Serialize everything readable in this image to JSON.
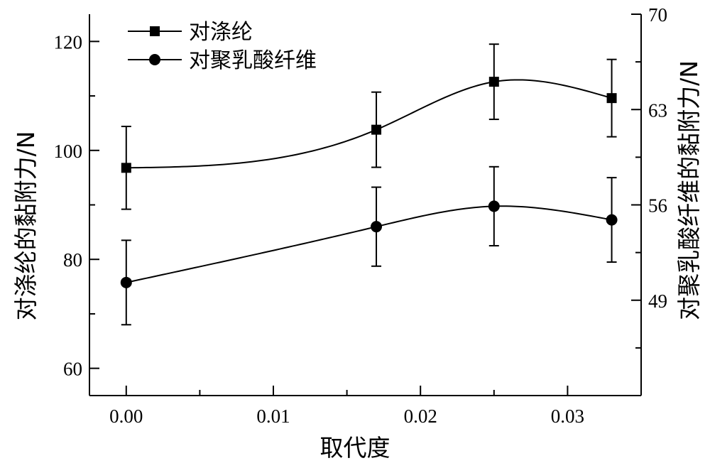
{
  "chart_data": {
    "type": "line",
    "xlabel": "取代度",
    "ylabel_left": "对涤纶的黏附力/N",
    "ylabel_right": "对聚乳酸纤维的黏附力/N",
    "xlim": [
      -0.0025,
      0.035
    ],
    "ylim_left": [
      55,
      125
    ],
    "ylim_right": [
      42,
      70
    ],
    "x_ticks": [
      "0.00",
      "0.01",
      "0.02",
      "0.03"
    ],
    "y_ticks_left": [
      "60",
      "80",
      "100",
      "120"
    ],
    "y_ticks_right": [
      "49",
      "56",
      "63",
      "70"
    ],
    "legend_position": "top-left",
    "series": [
      {
        "name": "对涤纶",
        "axis": "left",
        "marker": "square",
        "x": [
          0.0,
          0.017,
          0.025,
          0.033
        ],
        "y": [
          96.8,
          103.8,
          112.6,
          109.6
        ],
        "err": [
          7.6,
          6.9,
          6.9,
          7.1
        ]
      },
      {
        "name": "对聚乳酸纤维",
        "axis": "right",
        "marker": "circle",
        "x": [
          0.0,
          0.017,
          0.025,
          0.033
        ],
        "y": [
          50.3,
          54.4,
          55.9,
          54.9
        ],
        "err": [
          3.1,
          2.9,
          2.9,
          3.1
        ]
      }
    ]
  }
}
